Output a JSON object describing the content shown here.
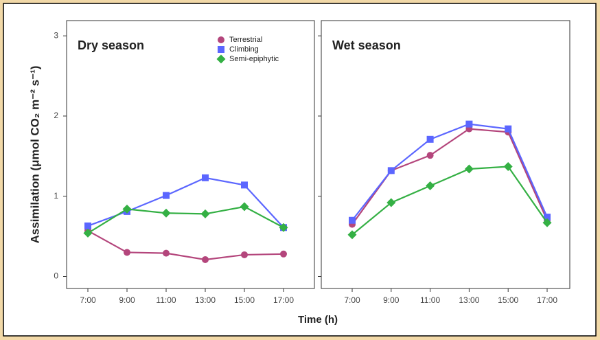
{
  "chart_data": [
    {
      "type": "line",
      "title": "Dry season",
      "ylabel": "Assimilation (μmol CO₂ m⁻² s⁻¹)",
      "xlabel": "Time (h)",
      "categories": [
        "7:00",
        "9:00",
        "11:00",
        "13:00",
        "15:00",
        "17:00"
      ],
      "ylim": [
        -0.15,
        3.19
      ],
      "yticks": [
        0,
        1,
        2,
        3
      ],
      "series": [
        {
          "name": "Terrestrial",
          "color": "#b4467c",
          "marker": "circle",
          "values": [
            0.57,
            0.3,
            0.29,
            0.21,
            0.27,
            0.28
          ]
        },
        {
          "name": "Climbing",
          "color": "#5b66ff",
          "marker": "square",
          "values": [
            0.63,
            0.81,
            1.01,
            1.23,
            1.14,
            0.61
          ]
        },
        {
          "name": "Semi-epiphytic",
          "color": "#34b044",
          "marker": "diamond",
          "values": [
            0.54,
            0.84,
            0.79,
            0.78,
            0.87,
            0.61
          ]
        }
      ]
    },
    {
      "type": "line",
      "title": "Wet season",
      "categories": [
        "7:00",
        "9:00",
        "11:00",
        "13:00",
        "15:00",
        "17:00"
      ],
      "ylim": [
        -0.15,
        3.19
      ],
      "yticks": [
        0,
        1,
        2,
        3
      ],
      "series": [
        {
          "color": "#b4467c",
          "marker": "circle",
          "values": [
            0.65,
            1.32,
            1.51,
            1.84,
            1.8,
            0.7
          ]
        },
        {
          "color": "#5b66ff",
          "marker": "square",
          "values": [
            0.7,
            1.32,
            1.71,
            1.9,
            1.84,
            0.74
          ]
        },
        {
          "color": "#34b044",
          "marker": "diamond",
          "values": [
            0.52,
            0.92,
            1.13,
            1.34,
            1.37,
            0.67
          ]
        }
      ]
    }
  ]
}
